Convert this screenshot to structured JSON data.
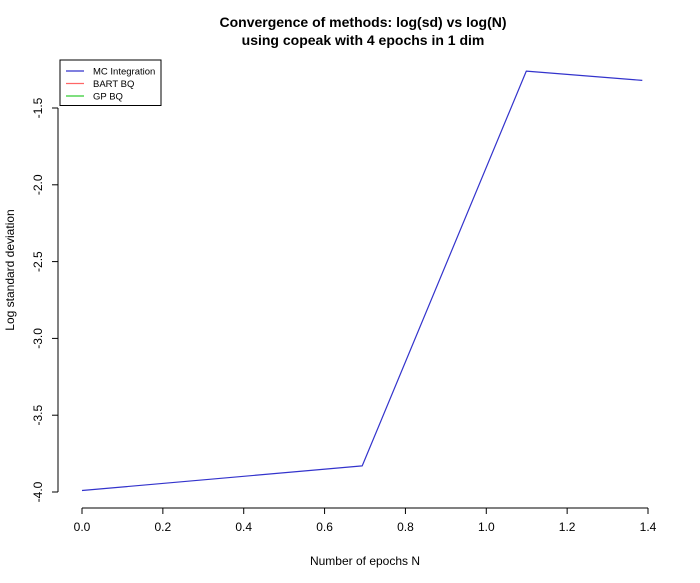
{
  "chart_data": {
    "type": "line",
    "title": [
      "Convergence of methods: log(sd) vs log(N)",
      "using copeak with 4 epochs in 1 dim"
    ],
    "xlabel": "Number of epochs N",
    "ylabel": "Log standard deviation",
    "xlim": [
      0,
      1.4
    ],
    "ylim": [
      -4.0,
      -1.5
    ],
    "x_ticks": [
      "0.0",
      "0.2",
      "0.4",
      "0.6",
      "0.8",
      "1.0",
      "1.2",
      "1.4"
    ],
    "y_ticks": [
      "-4.0",
      "-3.5",
      "-3.0",
      "-2.5",
      "-2.0",
      "-1.5"
    ],
    "grid": false,
    "legend_position": "top-left",
    "series": [
      {
        "name": "MC Integration",
        "color": "#3333cc",
        "x": [
          0.0,
          0.693,
          1.099,
          1.386
        ],
        "y": [
          -3.99,
          -3.83,
          -1.26,
          -1.32
        ]
      },
      {
        "name": "BART BQ",
        "color": "#ff6666",
        "x": [],
        "y": []
      },
      {
        "name": "GP BQ",
        "color": "#33cc33",
        "x": [],
        "y": []
      }
    ]
  }
}
